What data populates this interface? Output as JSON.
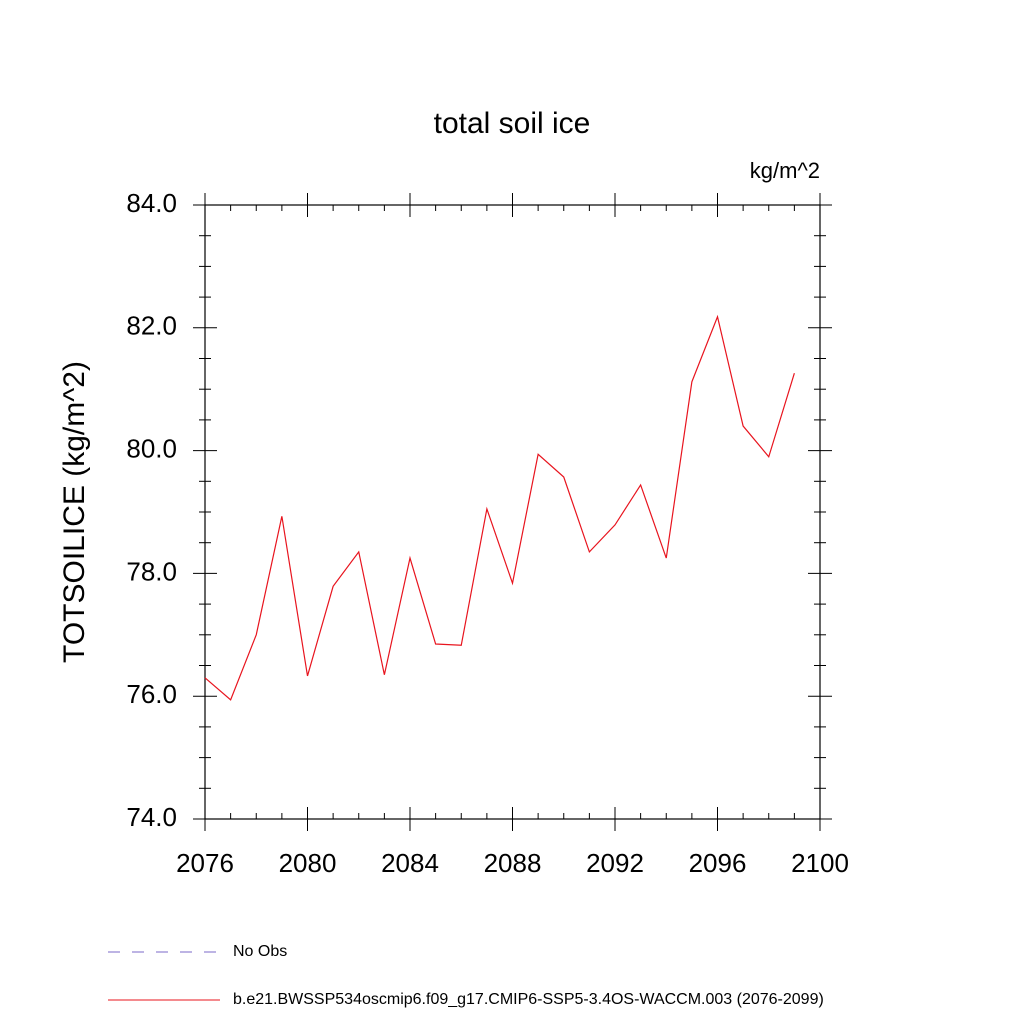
{
  "chart_data": {
    "type": "line",
    "title": "total soil ice",
    "units": "kg/m^2",
    "y_label": "TOTSOILICE  (kg/m^2)",
    "x": [
      2076,
      2077,
      2078,
      2079,
      2080,
      2081,
      2082,
      2083,
      2084,
      2085,
      2086,
      2087,
      2088,
      2089,
      2090,
      2091,
      2092,
      2093,
      2094,
      2095,
      2096,
      2097,
      2098,
      2099
    ],
    "series": [
      {
        "name": "No Obs",
        "color": "#7b68c8",
        "dash": true,
        "values": [
          null,
          null,
          null,
          null,
          null,
          null,
          null,
          null,
          null,
          null,
          null,
          null,
          null,
          null,
          null,
          null,
          null,
          null,
          null,
          null,
          null,
          null,
          null,
          null
        ]
      },
      {
        "name": "b.e21.BWSSP534oscmip6.f09_g17.CMIP6-SSP5-3.4OS-WACCM.003 (2076-2099)",
        "color": "#e8141e",
        "dash": false,
        "values": [
          76.3,
          75.94,
          77.0,
          78.93,
          76.33,
          77.79,
          78.35,
          76.35,
          78.25,
          76.85,
          76.83,
          79.05,
          77.84,
          79.94,
          79.57,
          78.35,
          78.79,
          79.44,
          78.25,
          81.12,
          82.18,
          80.4,
          79.9,
          81.26
        ]
      }
    ],
    "xlim": [
      2076,
      2100
    ],
    "xticks": [
      2076,
      2080,
      2084,
      2088,
      2092,
      2096,
      2100
    ],
    "xminorticks": [
      2077,
      2078,
      2079,
      2081,
      2082,
      2083,
      2085,
      2086,
      2087,
      2089,
      2090,
      2091,
      2093,
      2094,
      2095,
      2097,
      2098,
      2099
    ],
    "ylim": [
      74,
      84
    ],
    "yticks": [
      {
        "value": 74,
        "label": "74.0"
      },
      {
        "value": 76,
        "label": "76.0"
      },
      {
        "value": 78,
        "label": "78.0"
      },
      {
        "value": 80,
        "label": "80.0"
      },
      {
        "value": 82,
        "label": "82.0"
      },
      {
        "value": 84,
        "label": "84.0"
      }
    ],
    "yminorticks": [
      74.5,
      75,
      75.5,
      76.5,
      77,
      77.5,
      78.5,
      79,
      79.5,
      80.5,
      81,
      81.5,
      82.5,
      83,
      83.5
    ]
  }
}
